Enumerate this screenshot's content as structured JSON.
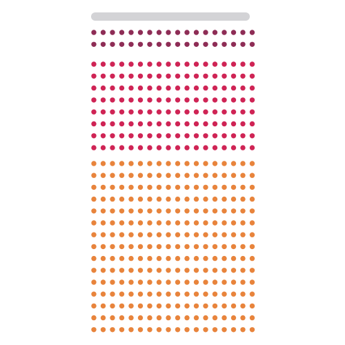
{
  "header": {
    "bar_color": "#d3d3d6"
  },
  "chart_data": {
    "type": "waffle",
    "columns": 18,
    "groups": [
      {
        "color": "#8e2d56",
        "rows": 2
      },
      {
        "color": "#cf2455",
        "rows": 8
      },
      {
        "color": "#e8843c",
        "rows": 15
      }
    ]
  }
}
